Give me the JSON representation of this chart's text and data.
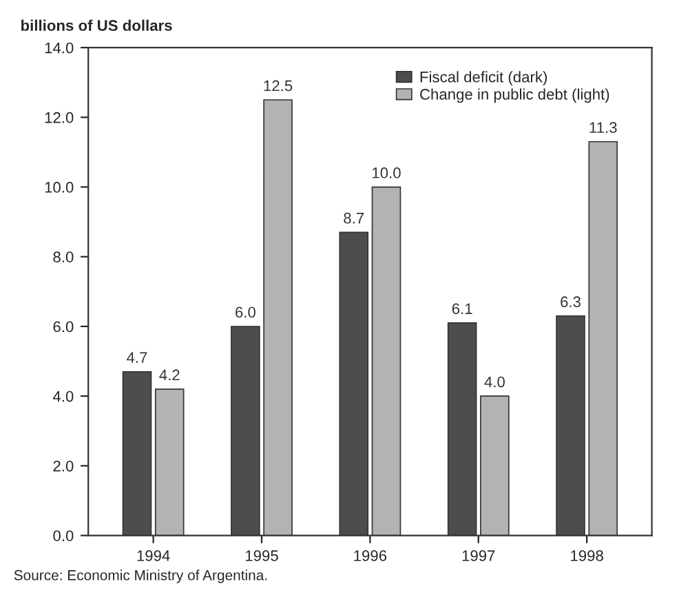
{
  "chart_data": {
    "type": "bar",
    "ylabel": "billions of US dollars",
    "categories": [
      "1994",
      "1995",
      "1996",
      "1997",
      "1998"
    ],
    "series": [
      {
        "name": "Fiscal deficit (dark)",
        "color": "#4d4d4d",
        "values": [
          4.7,
          6.0,
          8.7,
          6.1,
          6.3
        ],
        "value_labels": [
          "4.7",
          "6.0",
          "8.7",
          "6.1",
          "6.3"
        ]
      },
      {
        "name": "Change in public debt (light)",
        "color": "#b3b3b3",
        "values": [
          4.2,
          12.5,
          10.0,
          4.0,
          11.3
        ],
        "value_labels": [
          "4.2",
          "12.5",
          "10.0",
          "4.0",
          "11.3"
        ]
      }
    ],
    "ylim": [
      0,
      14
    ],
    "yticks": [
      {
        "value": 0,
        "label": "0.0"
      },
      {
        "value": 2,
        "label": "2.0"
      },
      {
        "value": 4,
        "label": "4.0"
      },
      {
        "value": 6,
        "label": "6.0"
      },
      {
        "value": 8,
        "label": "8.0"
      },
      {
        "value": 10,
        "label": "10.0"
      },
      {
        "value": 12,
        "label": "12.0"
      },
      {
        "value": 14,
        "label": "14.0"
      }
    ],
    "legend": "top right",
    "annotations": [
      "Source: Economic Ministry of Argentina."
    ]
  }
}
